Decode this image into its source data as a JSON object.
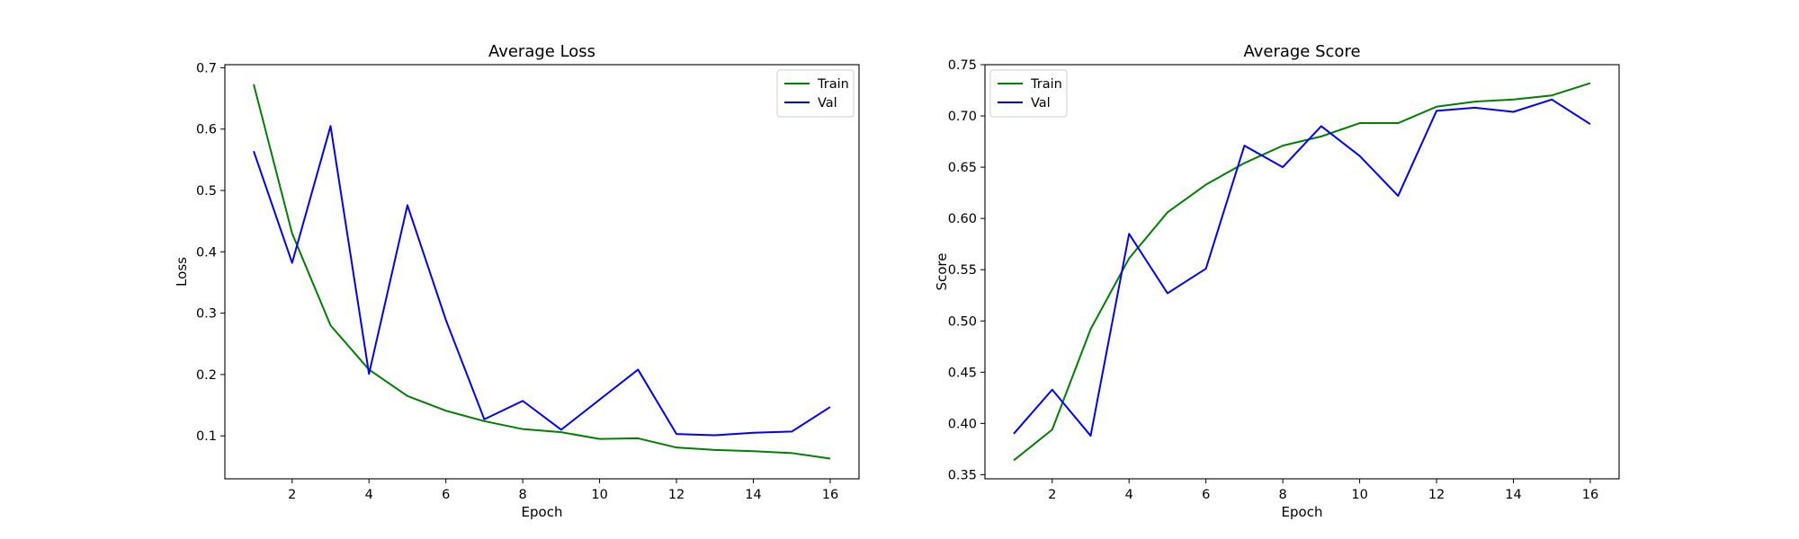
{
  "chart_data": [
    {
      "type": "line",
      "title": "Average Loss",
      "xlabel": "Epoch",
      "ylabel": "Loss",
      "x": [
        1,
        2,
        3,
        4,
        5,
        6,
        7,
        8,
        9,
        10,
        11,
        12,
        13,
        14,
        15,
        16
      ],
      "xlim": [
        0.25,
        16.75
      ],
      "ylim": [
        0.03,
        0.705
      ],
      "xticks": [
        2,
        4,
        6,
        8,
        10,
        12,
        14,
        16
      ],
      "xtick_labels": [
        "2",
        "4",
        "6",
        "8",
        "10",
        "12",
        "14",
        "16"
      ],
      "yticks": [
        0.1,
        0.2,
        0.3,
        0.4,
        0.5,
        0.6,
        0.7
      ],
      "ytick_labels": [
        "0.1",
        "0.2",
        "0.3",
        "0.4",
        "0.5",
        "0.6",
        "0.7"
      ],
      "grid": false,
      "legend_position": "top-right",
      "series": [
        {
          "name": "Train",
          "color": "#008000",
          "values": [
            0.673,
            0.43,
            0.28,
            0.208,
            0.165,
            0.141,
            0.124,
            0.111,
            0.106,
            0.095,
            0.096,
            0.081,
            0.077,
            0.075,
            0.072,
            0.063
          ]
        },
        {
          "name": "Val",
          "color": "#0000ff",
          "values": [
            0.564,
            0.382,
            0.605,
            0.201,
            0.476,
            0.289,
            0.127,
            0.157,
            0.11,
            0.159,
            0.208,
            0.103,
            0.101,
            0.105,
            0.107,
            0.147
          ]
        }
      ]
    },
    {
      "type": "line",
      "title": "Average Score",
      "xlabel": "Epoch",
      "ylabel": "Score",
      "x": [
        1,
        2,
        3,
        4,
        5,
        6,
        7,
        8,
        9,
        10,
        11,
        12,
        13,
        14,
        15,
        16
      ],
      "xlim": [
        0.25,
        16.75
      ],
      "ylim": [
        0.346,
        0.75
      ],
      "xticks": [
        2,
        4,
        6,
        8,
        10,
        12,
        14,
        16
      ],
      "xtick_labels": [
        "2",
        "4",
        "6",
        "8",
        "10",
        "12",
        "14",
        "16"
      ],
      "yticks": [
        0.35,
        0.4,
        0.45,
        0.5,
        0.55,
        0.6,
        0.65,
        0.7,
        0.75
      ],
      "ytick_labels": [
        "0.35",
        "0.40",
        "0.45",
        "0.50",
        "0.55",
        "0.60",
        "0.65",
        "0.70",
        "0.75"
      ],
      "grid": false,
      "legend_position": "top-left",
      "series": [
        {
          "name": "Train",
          "color": "#008000",
          "values": [
            0.364,
            0.394,
            0.492,
            0.561,
            0.606,
            0.633,
            0.654,
            0.671,
            0.68,
            0.693,
            0.693,
            0.709,
            0.714,
            0.716,
            0.72,
            0.732
          ]
        },
        {
          "name": "Val",
          "color": "#0000ff",
          "values": [
            0.39,
            0.433,
            0.388,
            0.585,
            0.527,
            0.551,
            0.671,
            0.65,
            0.69,
            0.661,
            0.622,
            0.705,
            0.708,
            0.704,
            0.716,
            0.692
          ]
        }
      ]
    }
  ]
}
